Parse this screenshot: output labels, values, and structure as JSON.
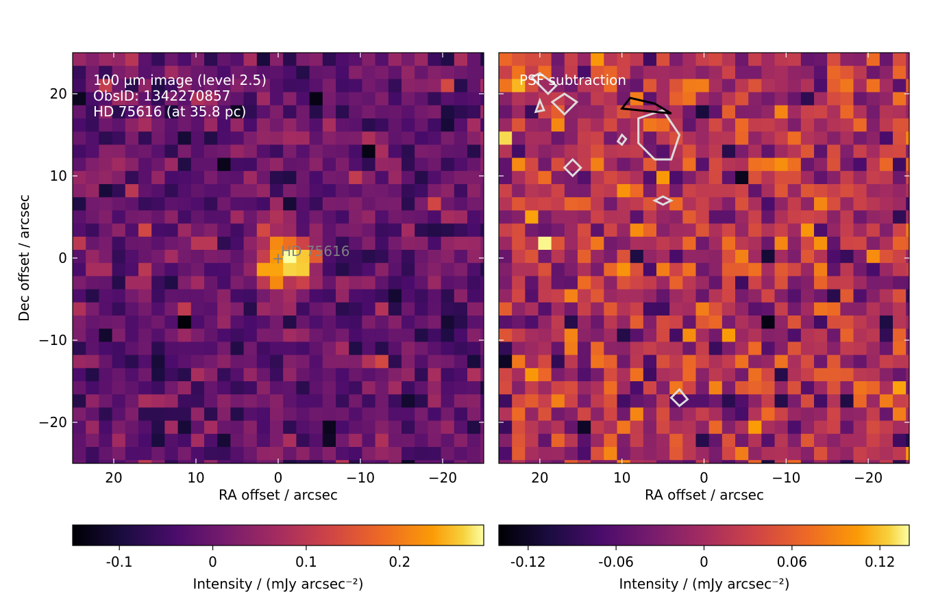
{
  "chart_data": [
    {
      "type": "heatmap",
      "panel": "left",
      "annotation_lines": [
        "100 µm image (level 2.5)",
        "ObsID: 1342270857",
        "HD 75616 (at 35.8 pc)"
      ],
      "source_marker": {
        "label": "HD  75616",
        "x": 0,
        "y": 0,
        "symbol": "+"
      },
      "xlabel": "RA offset / arcsec",
      "ylabel": "Dec offset / arcsec",
      "xlim": [
        25,
        -25
      ],
      "ylim": [
        -25,
        25
      ],
      "xticks": [
        20,
        10,
        0,
        -10,
        -20
      ],
      "xtick_labels": [
        "20",
        "10",
        "0",
        "−10",
        "−20"
      ],
      "yticks": [
        20,
        10,
        0,
        -10,
        -20
      ],
      "ytick_labels": [
        "20",
        "10",
        "0",
        "−10",
        "−20"
      ],
      "grid": false,
      "colormap": "inferno",
      "pixel_size_arcsec": 1.6,
      "description_of_values": "intensity per pixel; faint diffuse background with a compact bright source at the origin",
      "source_peak": 0.29,
      "background_range": [
        -0.15,
        0.12
      ],
      "colorbar": {
        "label": "Intensity / (mJy arcsec⁻²)",
        "vmin": -0.15,
        "vmax": 0.29,
        "ticks": [
          -0.1,
          0,
          0.1,
          0.2
        ],
        "tick_labels": [
          "-0.1",
          "0",
          "0.1",
          "0.2"
        ]
      }
    },
    {
      "type": "heatmap",
      "panel": "right",
      "annotation_lines": [
        "PSF subtraction"
      ],
      "xlabel": "RA offset / arcsec",
      "ylabel": "",
      "xlim": [
        25,
        -25
      ],
      "ylim": [
        -25,
        25
      ],
      "xticks": [
        20,
        10,
        0,
        -10,
        -20
      ],
      "xtick_labels": [
        "20",
        "10",
        "0",
        "−10",
        "−20"
      ],
      "grid": false,
      "colormap": "inferno",
      "pixel_size_arcsec": 1.6,
      "contours": [
        {
          "level": "negative",
          "color": "#dddddd"
        },
        {
          "level": "positive",
          "color": "#000000"
        }
      ],
      "colorbar": {
        "label": "Intensity / (mJy arcsec⁻²)",
        "vmin": -0.14,
        "vmax": 0.14,
        "ticks": [
          -0.12,
          -0.06,
          0,
          0.06,
          0.12
        ],
        "tick_labels": [
          "-0.12",
          "-0.06",
          "0",
          "0.06",
          "0.12"
        ]
      }
    }
  ]
}
